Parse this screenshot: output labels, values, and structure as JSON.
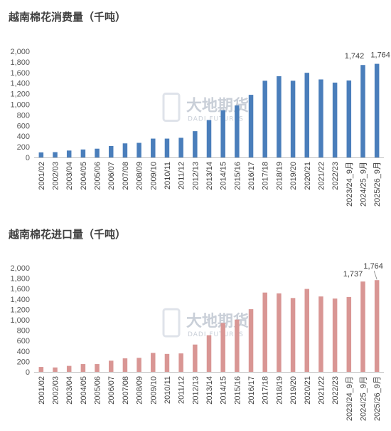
{
  "watermark": {
    "name": "大地期货",
    "sub": "DADI FUTURES"
  },
  "chart_data": [
    {
      "type": "bar",
      "title": "越南棉花消费量（千吨）",
      "categories": [
        "2001/02",
        "2002/03",
        "2003/04",
        "2004/05",
        "2005/06",
        "2006/07",
        "2007/08",
        "2008/09",
        "2009/10",
        "2010/11",
        "2011/12",
        "2012/13",
        "2013/14",
        "2014/15",
        "2015/16",
        "2016/17",
        "2017/18",
        "2018/19",
        "2019/20",
        "2020/21",
        "2021/22",
        "2022/23",
        "2023/24_9月",
        "2024/25_9月",
        "2025/26_9月"
      ],
      "values": [
        95,
        100,
        130,
        150,
        165,
        215,
        265,
        275,
        355,
        355,
        370,
        495,
        705,
        890,
        980,
        1180,
        1445,
        1530,
        1445,
        1595,
        1470,
        1410,
        1450,
        1742,
        1764
      ],
      "data_labels": {
        "23": "1,742",
        "24": "1,764"
      },
      "ylim": [
        0,
        2000
      ],
      "yticks": [
        "0",
        "200",
        "400",
        "600",
        "800",
        "1,000",
        "1,200",
        "1,400",
        "1,600",
        "1,800",
        "2,000"
      ],
      "color": "#4a7ebb",
      "grid": false,
      "legend": "none"
    },
    {
      "type": "bar",
      "title": "越南棉花进口量（千吨）",
      "categories": [
        "2001/02",
        "2002/03",
        "2003/04",
        "2004/05",
        "2005/06",
        "2006/07",
        "2007/08",
        "2008/09",
        "2009/10",
        "2010/11",
        "2011/12",
        "2012/13",
        "2013/14",
        "2014/15",
        "2015/16",
        "2016/17",
        "2017/18",
        "2018/19",
        "2019/20",
        "2020/21",
        "2021/22",
        "2022/23",
        "2023/24_9月",
        "2024/25_9月",
        "2025/26_9月"
      ],
      "values": [
        95,
        85,
        115,
        150,
        150,
        215,
        260,
        270,
        365,
        345,
        355,
        525,
        705,
        940,
        1005,
        1205,
        1525,
        1510,
        1420,
        1595,
        1450,
        1410,
        1440,
        1737,
        1764
      ],
      "data_labels": {
        "23": "1,737",
        "24": "1,764"
      },
      "ylim": [
        0,
        2000
      ],
      "yticks": [
        "0",
        "200",
        "400",
        "600",
        "800",
        "1,000",
        "1,200",
        "1,400",
        "1,600",
        "1,800",
        "2,000"
      ],
      "color": "#d99694",
      "grid": false,
      "legend": "none"
    }
  ]
}
